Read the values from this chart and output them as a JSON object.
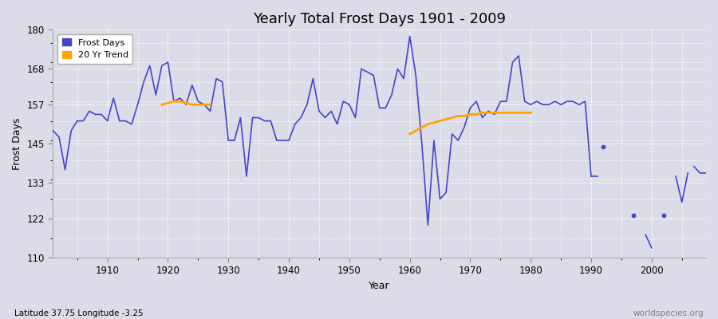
{
  "title": "Yearly Total Frost Days 1901 - 2009",
  "xlabel": "Year",
  "ylabel": "Frost Days",
  "subtitle": "Latitude 37.75 Longitude -3.25",
  "watermark": "worldspecies.org",
  "ylim": [
    110,
    180
  ],
  "xlim": [
    1901,
    2009
  ],
  "yticks": [
    110,
    122,
    133,
    145,
    157,
    168,
    180
  ],
  "xticks": [
    1910,
    1920,
    1930,
    1940,
    1950,
    1960,
    1970,
    1980,
    1990,
    2000
  ],
  "frost_days_color": "#4444cc",
  "trend_color": "#FFA500",
  "bg_color": "#dcdce8",
  "frost_years": [
    1901,
    1902,
    1903,
    1904,
    1905,
    1906,
    1907,
    1908,
    1909,
    1910,
    1911,
    1912,
    1913,
    1914,
    1915,
    1916,
    1917,
    1918,
    1919,
    1920,
    1921,
    1922,
    1923,
    1924,
    1925,
    1926,
    1927,
    1928,
    1929,
    1930,
    1931,
    1932,
    1933,
    1934,
    1935,
    1936,
    1937,
    1938,
    1939,
    1940,
    1941,
    1942,
    1943,
    1944,
    1945,
    1946,
    1947,
    1948,
    1949,
    1950,
    1951,
    1952,
    1953,
    1954,
    1955,
    1956,
    1957,
    1958,
    1959,
    1960,
    1961,
    1962,
    1963,
    1964,
    1965,
    1966,
    1967,
    1968,
    1969,
    1970,
    1971,
    1972,
    1973,
    1974,
    1975,
    1976,
    1977,
    1978,
    1979,
    1980,
    1981,
    1982,
    1983,
    1984,
    1985,
    1986,
    1987,
    1988,
    1989,
    1990
  ],
  "frost_values": [
    149,
    147,
    137,
    149,
    152,
    152,
    155,
    154,
    154,
    152,
    159,
    152,
    152,
    151,
    157,
    164,
    169,
    160,
    169,
    170,
    158,
    159,
    157,
    163,
    158,
    157,
    155,
    165,
    164,
    146,
    146,
    153,
    135,
    153,
    153,
    152,
    152,
    146,
    146,
    146,
    151,
    153,
    157,
    165,
    155,
    153,
    155,
    151,
    158,
    157,
    153,
    168,
    167,
    166,
    156,
    156,
    160,
    168,
    165,
    178,
    166,
    145,
    120,
    146,
    128,
    130,
    148,
    146,
    150,
    156,
    158,
    153,
    155,
    154,
    158,
    158,
    170,
    172,
    158,
    157,
    158,
    157,
    157,
    158,
    157,
    158,
    158,
    157,
    158,
    135
  ],
  "main_line_breaks": true,
  "post1990_connected_years": [
    1990,
    1991
  ],
  "post1990_connected_values": [
    135,
    135
  ],
  "isolated_segment1_years": [
    1999,
    2000
  ],
  "isolated_segment1_values": [
    117,
    113
  ],
  "isolated_segment2_years": [
    2004,
    2005,
    2006
  ],
  "isolated_segment2_values": [
    135,
    127,
    136
  ],
  "isolated_segment3_years": [
    2007,
    2008,
    2009
  ],
  "isolated_segment3_values": [
    138,
    136,
    136
  ],
  "isolated_dot1_year": 1992,
  "isolated_dot1_value": 144,
  "isolated_dot2_year": 1997,
  "isolated_dot2_value": 123,
  "isolated_dot3_year": 2002,
  "isolated_dot3_value": 123,
  "trend1_years": [
    1919,
    1920,
    1921,
    1922,
    1923,
    1924,
    1925,
    1926,
    1927
  ],
  "trend1_values": [
    157,
    157.5,
    158,
    158,
    157.5,
    157,
    157,
    157,
    157
  ],
  "trend2_years": [
    1960,
    1961,
    1962,
    1963,
    1964,
    1965,
    1966,
    1967,
    1968,
    1969,
    1970,
    1971,
    1972,
    1973,
    1974,
    1975,
    1976,
    1977,
    1978,
    1979,
    1980
  ],
  "trend2_values": [
    148,
    149,
    150,
    151,
    151.5,
    152,
    152.5,
    153,
    153.5,
    153.5,
    154,
    154,
    154.5,
    154.5,
    154.5,
    154.5,
    154.5,
    154.5,
    154.5,
    154.5,
    154.5
  ]
}
